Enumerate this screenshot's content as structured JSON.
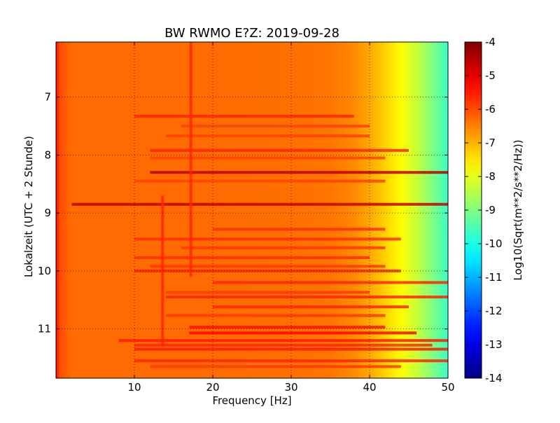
{
  "chart_data": {
    "type": "heatmap",
    "title": "BW RWMO E?Z: 2019-09-28",
    "xlabel": "Frequency [Hz]",
    "ylabel": "Lokalzeit (UTC + 2 Stunde)",
    "xlim": [
      0,
      50
    ],
    "ylim": [
      11.85,
      6.05
    ],
    "x_ticks": [
      "10",
      "20",
      "30",
      "40",
      "50"
    ],
    "x_tick_values": [
      10,
      20,
      30,
      40,
      50
    ],
    "y_ticks": [
      "7",
      "8",
      "9",
      "10",
      "11"
    ],
    "y_tick_values": [
      7,
      8,
      9,
      10,
      11
    ],
    "grid": true,
    "colorbar": {
      "label": "Log10(Sqrt(m**2/s**2/Hz))",
      "range": [
        -14,
        -4
      ],
      "ticks": [
        "-4",
        "-5",
        "-6",
        "-7",
        "-8",
        "-9",
        "-10",
        "-11",
        "-12",
        "-13",
        "-14"
      ],
      "tick_values": [
        -4,
        -5,
        -6,
        -7,
        -8,
        -9,
        -10,
        -11,
        -12,
        -13,
        -14
      ],
      "colormap": "jet"
    },
    "background_level_by_frequency": {
      "frequency": [
        0,
        0.5,
        2,
        10,
        20,
        30,
        35,
        38,
        40,
        42,
        44,
        46,
        48,
        50
      ],
      "value": [
        -5.3,
        -6.0,
        -6.3,
        -6.3,
        -6.3,
        -6.35,
        -6.4,
        -6.6,
        -6.9,
        -7.3,
        -7.75,
        -8.3,
        -9.0,
        -9.7
      ]
    },
    "horizontal_bands": [
      {
        "time": 7.33,
        "f_start": 10,
        "f_end": 38,
        "value": -5.6
      },
      {
        "time": 7.5,
        "f_start": 16,
        "f_end": 40,
        "value": -5.9
      },
      {
        "time": 7.67,
        "f_start": 14,
        "f_end": 40,
        "value": -5.9
      },
      {
        "time": 7.92,
        "f_start": 12,
        "f_end": 45,
        "value": -5.6
      },
      {
        "time": 8.05,
        "f_start": 12,
        "f_end": 42,
        "value": -5.9
      },
      {
        "time": 8.3,
        "f_start": 12,
        "f_end": 50,
        "value": -4.6
      },
      {
        "time": 8.45,
        "f_start": 10,
        "f_end": 42,
        "value": -5.9
      },
      {
        "time": 8.85,
        "f_start": 2,
        "f_end": 50,
        "value": -4.7
      },
      {
        "time": 9.28,
        "f_start": 20,
        "f_end": 42,
        "value": -5.7
      },
      {
        "time": 9.45,
        "f_start": 10,
        "f_end": 44,
        "value": -5.7
      },
      {
        "time": 9.6,
        "f_start": 16,
        "f_end": 42,
        "value": -5.8
      },
      {
        "time": 9.77,
        "f_start": 10,
        "f_end": 40,
        "value": -5.7
      },
      {
        "time": 9.92,
        "f_start": 12,
        "f_end": 42,
        "value": -5.8
      },
      {
        "time": 10.0,
        "f_start": 10,
        "f_end": 44,
        "value": -5.6
      },
      {
        "time": 10.2,
        "f_start": 20,
        "f_end": 50,
        "value": -5.6
      },
      {
        "time": 10.37,
        "f_start": 14,
        "f_end": 40,
        "value": -5.8
      },
      {
        "time": 10.45,
        "f_start": 14,
        "f_end": 50,
        "value": -5.6
      },
      {
        "time": 10.62,
        "f_start": 20,
        "f_end": 45,
        "value": -5.6
      },
      {
        "time": 10.77,
        "f_start": 14,
        "f_end": 42,
        "value": -5.8
      },
      {
        "time": 10.97,
        "f_start": 17,
        "f_end": 42,
        "value": -5.4
      },
      {
        "time": 11.07,
        "f_start": 17,
        "f_end": 46,
        "value": -5.3
      },
      {
        "time": 11.2,
        "f_start": 8,
        "f_end": 50,
        "value": -5.5
      },
      {
        "time": 11.28,
        "f_start": 10,
        "f_end": 48,
        "value": -5.6
      },
      {
        "time": 11.35,
        "f_start": 10,
        "f_end": 50,
        "value": -5.5
      },
      {
        "time": 11.55,
        "f_start": 10,
        "f_end": 50,
        "value": -5.6
      },
      {
        "time": 11.65,
        "f_start": 12,
        "f_end": 44,
        "value": -5.8
      }
    ],
    "vertical_lines": [
      {
        "frequency": 17.2,
        "t_start": 6.05,
        "t_end": 10.1,
        "value": -5.6
      },
      {
        "frequency": 13.6,
        "t_start": 8.7,
        "t_end": 11.3,
        "value": -5.6
      }
    ]
  }
}
